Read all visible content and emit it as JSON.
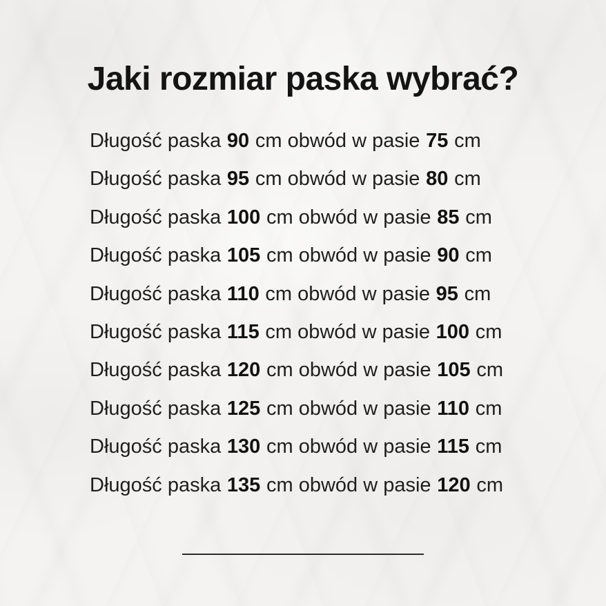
{
  "page": {
    "title": "Jaki rozmiar paska wybrać?"
  },
  "size_list": {
    "label_before": "Długość paska",
    "label_middle": "cm obwód w pasie",
    "label_after": "cm",
    "rows": [
      {
        "belt_length_cm": "90",
        "waist_cm": "75"
      },
      {
        "belt_length_cm": "95",
        "waist_cm": "80"
      },
      {
        "belt_length_cm": "100",
        "waist_cm": "85"
      },
      {
        "belt_length_cm": "105",
        "waist_cm": "90"
      },
      {
        "belt_length_cm": "110",
        "waist_cm": "95"
      },
      {
        "belt_length_cm": "115",
        "waist_cm": "100"
      },
      {
        "belt_length_cm": "120",
        "waist_cm": "105"
      },
      {
        "belt_length_cm": "125",
        "waist_cm": "110"
      },
      {
        "belt_length_cm": "130",
        "waist_cm": "115"
      },
      {
        "belt_length_cm": "135",
        "waist_cm": "120"
      }
    ]
  },
  "colors": {
    "background": "#f4f3f1",
    "text": "#1e1e1e",
    "title": "#141414",
    "divider": "#2b2b2b"
  }
}
